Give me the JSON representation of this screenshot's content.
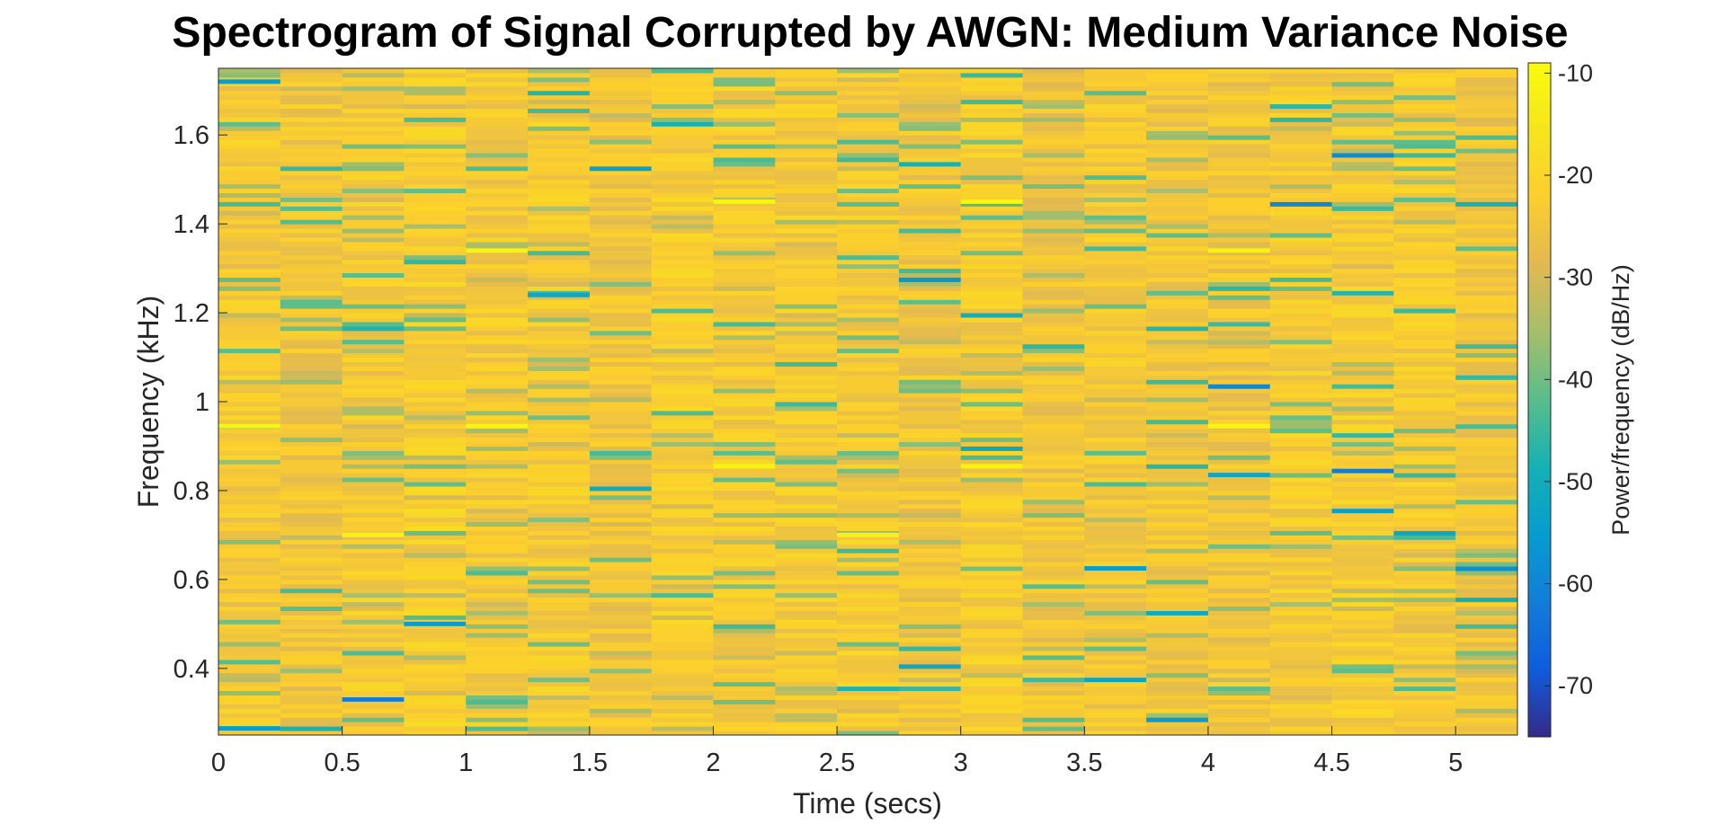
{
  "chart_data": {
    "type": "heatmap",
    "title": "Spectrogram of Signal Corrupted by AWGN: Medium Variance Noise",
    "xlabel": "Time (secs)",
    "ylabel": "Frequency (kHz)",
    "xlim": [
      0,
      5.25
    ],
    "ylim": [
      0.25,
      1.75
    ],
    "x_ticks": [
      0,
      0.5,
      1,
      1.5,
      2,
      2.5,
      3,
      3.5,
      4,
      4.5,
      5
    ],
    "x_tick_labels": [
      "0",
      "0.5",
      "1",
      "1.5",
      "2",
      "2.5",
      "3",
      "3.5",
      "4",
      "4.5",
      "5"
    ],
    "y_ticks": [
      0.4,
      0.6,
      0.8,
      1.0,
      1.2,
      1.4,
      1.6
    ],
    "y_tick_labels": [
      "0.4",
      "0.6",
      "0.8",
      "1",
      "1.2",
      "1.4",
      "1.6"
    ],
    "time_bins": 21,
    "time_bin_width": 0.25,
    "frequency_bins": 150,
    "colormap": "parula",
    "colorbar": {
      "label": "Power/frequency (dB/Hz)",
      "range": [
        -75,
        -9
      ],
      "ticks": [
        -10,
        -20,
        -30,
        -40,
        -50,
        -60,
        -70
      ],
      "tick_labels": [
        "-10",
        "-20",
        "-30",
        "-40",
        "-50",
        "-60",
        "-70"
      ]
    },
    "typical_power_db": -24,
    "notable_peaks": [
      {
        "time": 0.125,
        "freq": 0.945,
        "power_db": -11
      },
      {
        "time": 1.125,
        "freq": 0.945,
        "power_db": -11
      },
      {
        "time": 1.125,
        "freq": 1.34,
        "power_db": -12
      },
      {
        "time": 2.125,
        "freq": 1.45,
        "power_db": -11
      },
      {
        "time": 2.125,
        "freq": 0.855,
        "power_db": -12
      },
      {
        "time": 2.625,
        "freq": 0.7,
        "power_db": -12
      },
      {
        "time": 3.125,
        "freq": 1.45,
        "power_db": -11
      },
      {
        "time": 3.125,
        "freq": 0.855,
        "power_db": -12
      },
      {
        "time": 4.125,
        "freq": 0.945,
        "power_db": -11
      },
      {
        "time": 4.125,
        "freq": 1.34,
        "power_db": -12
      },
      {
        "time": 0.625,
        "freq": 0.7,
        "power_db": -12
      }
    ],
    "notable_dips": [
      {
        "time": 0.625,
        "freq": 0.33,
        "power_db": -62
      },
      {
        "time": 0.125,
        "freq": 0.265,
        "power_db": -55
      },
      {
        "time": 0.125,
        "freq": 1.72,
        "power_db": -55
      },
      {
        "time": 1.375,
        "freq": 1.24,
        "power_db": -52
      },
      {
        "time": 0.875,
        "freq": 0.5,
        "power_db": -55
      },
      {
        "time": 4.125,
        "freq": 0.835,
        "power_db": -52
      },
      {
        "time": 3.625,
        "freq": 0.625,
        "power_db": -55
      }
    ]
  }
}
